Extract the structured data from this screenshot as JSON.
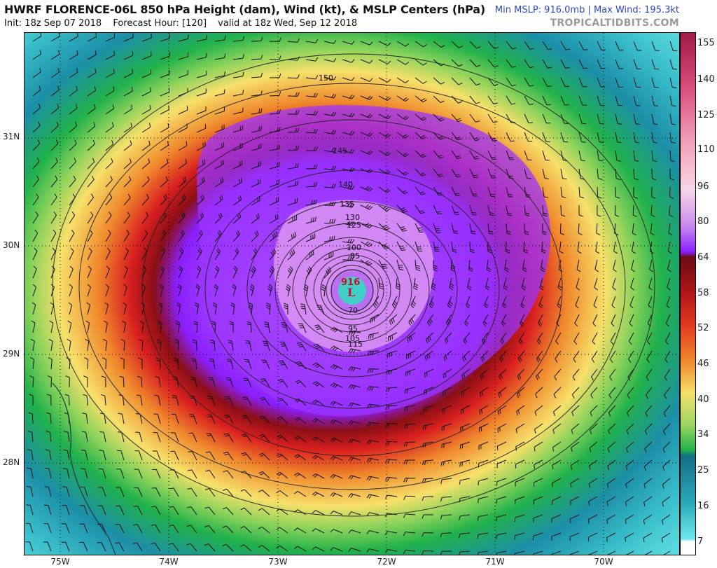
{
  "header": {
    "title": "HWRF FLORENCE-06L 850 hPa Height (dam), Wind (kt), & MSLP Centers (hPa)",
    "init": "Init: 18z Sep 07 2018",
    "forecast_hour": "Forecast Hour: [120]",
    "valid": "valid at 18z Wed, Sep 12 2018",
    "minmax": "Min MSLP: 916.0mb | Max Wind: 195.3kt",
    "brand": "TROPICALTIDBITS.COM"
  },
  "map": {
    "low_marker": "L",
    "low_pressure": "916",
    "latitude_labels": [
      "31N",
      "30N",
      "29N",
      "28N"
    ],
    "longitude_labels": [
      "75W",
      "74W",
      "73W",
      "72W",
      "71W",
      "70W"
    ],
    "height_contour_labels": [
      "150",
      "145",
      "140",
      "135",
      "130",
      "125",
      "115",
      "105",
      "100",
      "95",
      "85",
      "70"
    ],
    "colors": {
      "cyan": "#5ad8df",
      "teal": "#1b8fa8",
      "green": "#21b24b",
      "yellow": "#f6e06a",
      "orange": "#f08a2c",
      "red": "#d81f1f",
      "darkred": "#8a0f14",
      "purple": "#8a1fff",
      "pink": "#f2c6e8"
    }
  },
  "colorbar": {
    "labels": [
      "155",
      "140",
      "125",
      "110",
      "96",
      "80",
      "64",
      "58",
      "52",
      "46",
      "40",
      "34",
      "25",
      "16",
      "7"
    ]
  }
}
